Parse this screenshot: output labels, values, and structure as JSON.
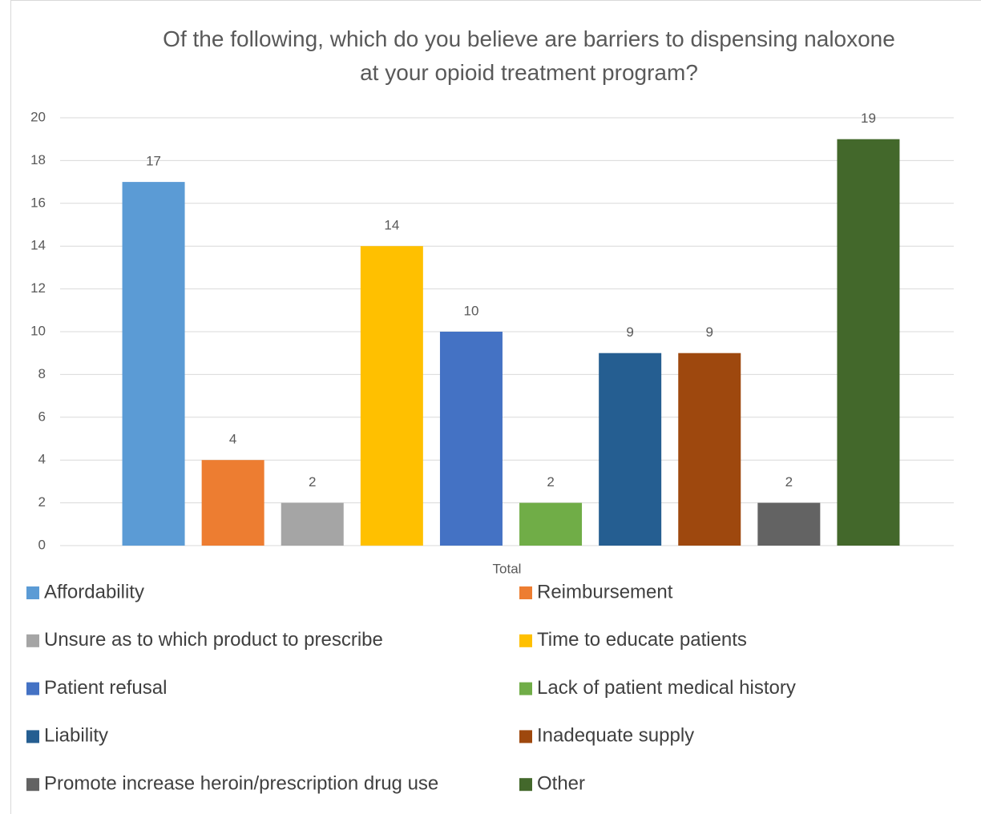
{
  "chart_data": {
    "type": "bar",
    "title": "Of the following, which do you believe are barriers to dispensing naloxone at your opioid treatment program?",
    "categories": [
      "Total"
    ],
    "series": [
      {
        "name": "Affordability",
        "color": "#5b9bd5",
        "values": [
          17
        ]
      },
      {
        "name": "Reimbursement",
        "color": "#ed7d31",
        "values": [
          4
        ]
      },
      {
        "name": "Unsure as to which product to prescribe",
        "color": "#a5a5a5",
        "values": [
          2
        ]
      },
      {
        "name": "Time to educate patients",
        "color": "#ffc000",
        "values": [
          14
        ]
      },
      {
        "name": "Patient refusal",
        "color": "#4472c4",
        "values": [
          10
        ]
      },
      {
        "name": "Lack of patient medical history",
        "color": "#70ad47",
        "values": [
          2
        ]
      },
      {
        "name": "Liability",
        "color": "#255e91",
        "values": [
          9
        ]
      },
      {
        "name": "Inadequate supply",
        "color": "#9e480e",
        "values": [
          9
        ]
      },
      {
        "name": "Promote increase heroin/prescription drug use",
        "color": "#636363",
        "values": [
          2
        ]
      },
      {
        "name": "Other",
        "color": "#43682b",
        "values": [
          19
        ]
      }
    ],
    "ylim": [
      0,
      20
    ],
    "yticks": [
      0,
      2,
      4,
      6,
      8,
      10,
      12,
      14,
      16,
      18,
      20
    ],
    "grid": true,
    "legend": "bottom"
  }
}
